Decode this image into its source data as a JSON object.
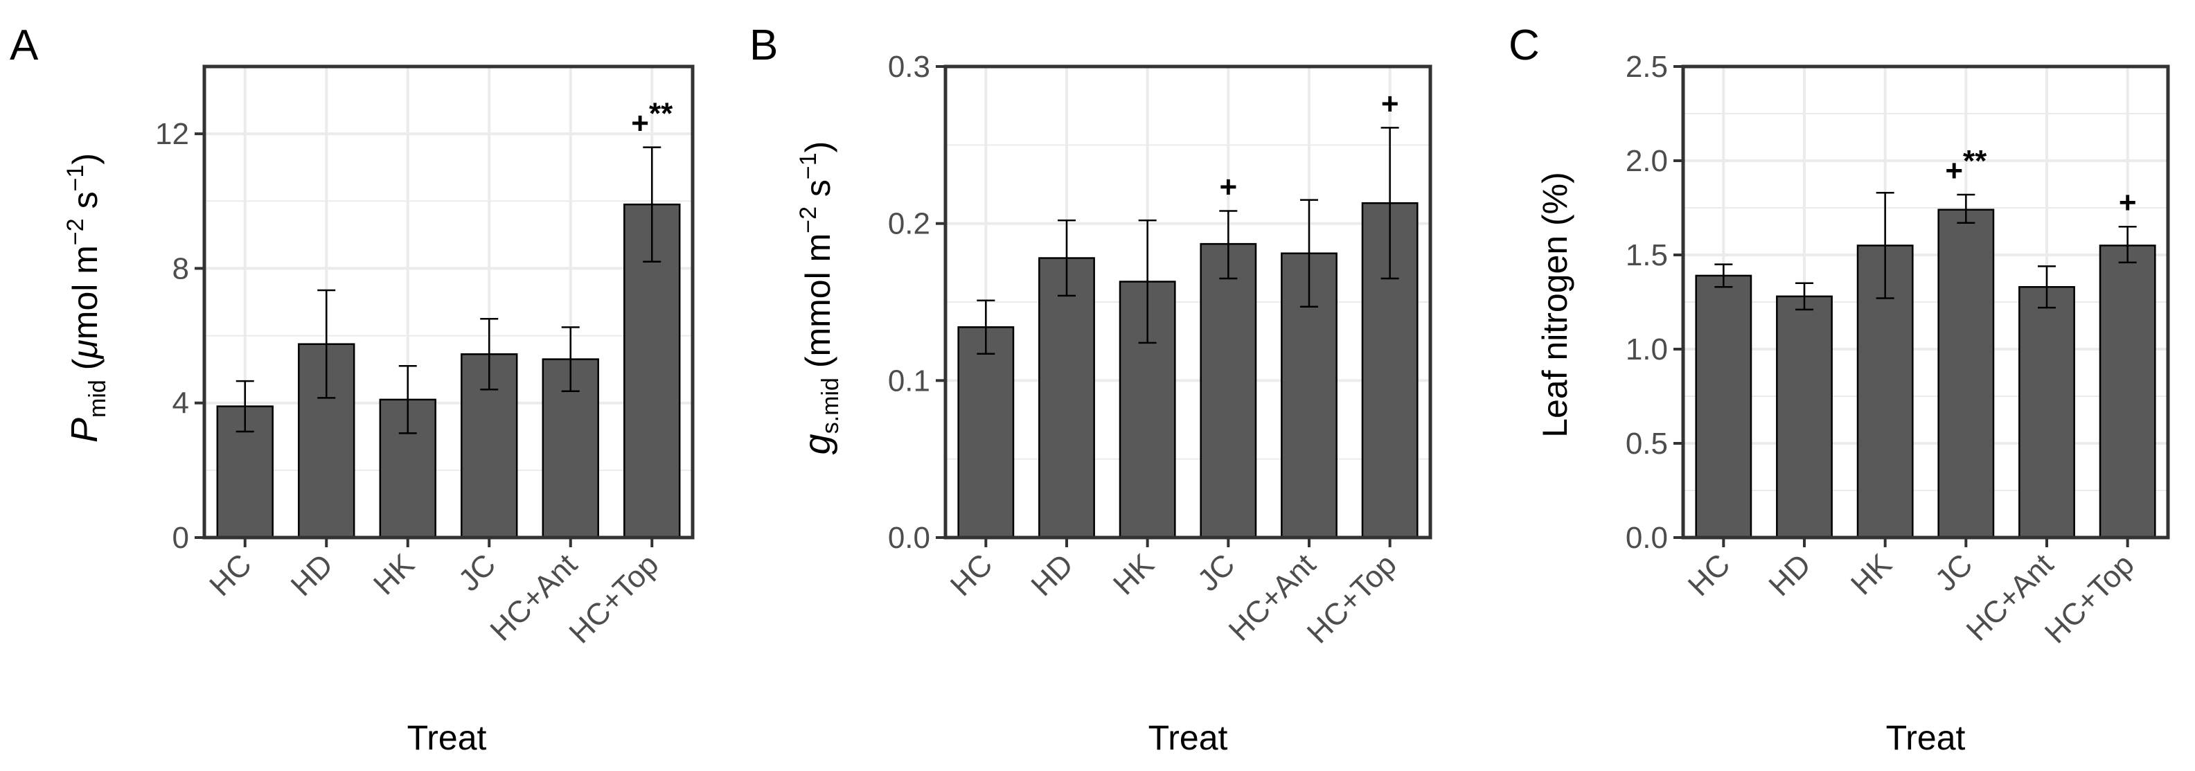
{
  "figure": {
    "background": "#ffffff",
    "bar_color": "#595959",
    "grid_color": "#ebebeb",
    "frame_color": "#333333"
  },
  "chart_data": [
    {
      "panel": "A",
      "type": "bar",
      "categories": [
        "HC",
        "HD",
        "HK",
        "JC",
        "HC+Ant",
        "HC+Top"
      ],
      "values": [
        3.9,
        5.75,
        4.1,
        5.45,
        5.3,
        9.9
      ],
      "error_low": [
        3.15,
        4.15,
        3.1,
        4.4,
        4.35,
        8.2
      ],
      "error_high": [
        4.65,
        7.35,
        5.1,
        6.5,
        6.25,
        11.6
      ],
      "annotations": [
        "",
        "",
        "",
        "",
        "",
        "+**"
      ],
      "ylim": [
        0,
        14
      ],
      "yticks": [
        0,
        4,
        8,
        12
      ],
      "ytick_labels": [
        "0",
        "4",
        "8",
        "12"
      ],
      "xlabel": "Treat",
      "ylabel": {
        "main": "P",
        "sub": "mid",
        "unit_open": "(",
        "unit_mu": "μ",
        "unit_mol_m": "mol m",
        "sup1": "−2",
        "unit_s": " s",
        "sup2": "−1",
        "unit_close": ")"
      },
      "grid": true
    },
    {
      "panel": "B",
      "type": "bar",
      "categories": [
        "HC",
        "HD",
        "HK",
        "JC",
        "HC+Ant",
        "HC+Top"
      ],
      "values": [
        0.134,
        0.178,
        0.163,
        0.187,
        0.181,
        0.213
      ],
      "error_low": [
        0.117,
        0.154,
        0.124,
        0.165,
        0.147,
        0.165
      ],
      "error_high": [
        0.151,
        0.202,
        0.202,
        0.208,
        0.215,
        0.261
      ],
      "annotations": [
        "",
        "",
        "",
        "+",
        "",
        "+"
      ],
      "ylim": [
        0,
        0.3
      ],
      "yticks": [
        0,
        0.1,
        0.2,
        0.3
      ],
      "ytick_labels": [
        "0.0",
        "0.1",
        "0.2",
        "0.3"
      ],
      "xlabel": "Treat",
      "ylabel": {
        "main": "g",
        "sub": "s.mid",
        "unit_open": "(mmol m",
        "sup1": "−2",
        "unit_s": " s",
        "sup2": "−1",
        "unit_close": ")"
      },
      "grid": true
    },
    {
      "panel": "C",
      "type": "bar",
      "categories": [
        "HC",
        "HD",
        "HK",
        "JC",
        "HC+Ant",
        "HC+Top"
      ],
      "values": [
        1.39,
        1.28,
        1.55,
        1.74,
        1.33,
        1.55
      ],
      "error_low": [
        1.33,
        1.21,
        1.27,
        1.67,
        1.22,
        1.46
      ],
      "error_high": [
        1.45,
        1.35,
        1.83,
        1.82,
        1.44,
        1.65
      ],
      "annotations": [
        "",
        "",
        "",
        "+**",
        "",
        "+"
      ],
      "ylim": [
        0,
        2.5
      ],
      "yticks": [
        0,
        0.5,
        1.0,
        1.5,
        2.0,
        2.5
      ],
      "ytick_labels": [
        "0.0",
        "0.5",
        "1.0",
        "1.5",
        "2.0",
        "2.5"
      ],
      "xlabel": "Treat",
      "ylabel": {
        "text": "Leaf nitrogen (%)"
      },
      "grid": true
    }
  ]
}
